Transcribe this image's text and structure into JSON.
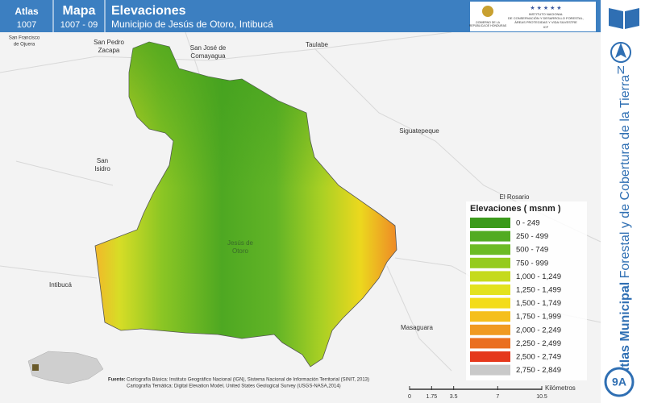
{
  "header": {
    "atlas_label": "Atlas",
    "atlas_number": "1007",
    "map_label": "Mapa",
    "map_number": "1007 - 09",
    "title": "Elevaciones",
    "subtitle": "Municipio de Jesús de Otoro, Intibucá"
  },
  "logo": {
    "government": [
      "GOBIERNO DE LA",
      "REPÚBLICA DE HONDURAS"
    ],
    "institute": [
      "INSTITUTO NACIONAL",
      "DE CONSERVACIÓN Y DESARROLLO FORESTAL,",
      "ÁREAS PROTEGIDAS Y VIDA SILVESTRE"
    ],
    "acronym": "ICF"
  },
  "places": [
    {
      "lines": [
        "San Francisco",
        "de Ojuera"
      ]
    },
    {
      "lines": [
        "San Pedro",
        "Zacapa"
      ]
    },
    {
      "lines": [
        "San José de",
        "Comayagua"
      ]
    },
    {
      "lines": [
        "Taulabe"
      ]
    },
    {
      "lines": [
        "Siguatepeque"
      ]
    },
    {
      "lines": [
        "San",
        "Isidro"
      ]
    },
    {
      "lines": [
        "El Rosario"
      ]
    },
    {
      "lines": [
        "Jesús de",
        "Otoro"
      ]
    },
    {
      "lines": [
        "Intibucá"
      ]
    },
    {
      "lines": [
        "Masaguara"
      ]
    }
  ],
  "legend": {
    "title": "Elevaciones ( msnm )",
    "classes": [
      {
        "label": "0 - 249",
        "color": "#3b9a1b"
      },
      {
        "label": "250 - 499",
        "color": "#52ab22"
      },
      {
        "label": "500 - 749",
        "color": "#6cbb24"
      },
      {
        "label": "750 - 999",
        "color": "#95cb1e"
      },
      {
        "label": "1,000 - 1,249",
        "color": "#c5da1c"
      },
      {
        "label": "1,250 - 1,499",
        "color": "#e3e21e"
      },
      {
        "label": "1,500 - 1,749",
        "color": "#f3dc1a"
      },
      {
        "label": "1,750 - 1,999",
        "color": "#f5bf1c"
      },
      {
        "label": "2,000 - 2,249",
        "color": "#f09a22"
      },
      {
        "label": "2,250 - 2,499",
        "color": "#ea6f20"
      },
      {
        "label": "2,500 - 2,749",
        "color": "#e5381c"
      },
      {
        "label": "2,750 - 2,849",
        "color": "#c9c9c9"
      }
    ]
  },
  "sidebar": {
    "north": "N",
    "title_bold": "Atlas Municipal",
    "title_rest": " Forestal y de Cobertura de la Tierra",
    "page": "9A"
  },
  "sources": {
    "label": "Fuente:",
    "lines": [
      "Cartografía Básica: Instituto Geográfico Nacional (IGN), Sistema Nacional de Información Territorial (SINIT, 2013)",
      "Cartografía Temática: Digital Elevation Model, United States Geological Survey (USGS-NASA,2014)"
    ]
  },
  "scale": {
    "ticks": [
      0,
      1.75,
      3.5,
      7,
      10.5
    ],
    "unit": "Kilómetros"
  }
}
